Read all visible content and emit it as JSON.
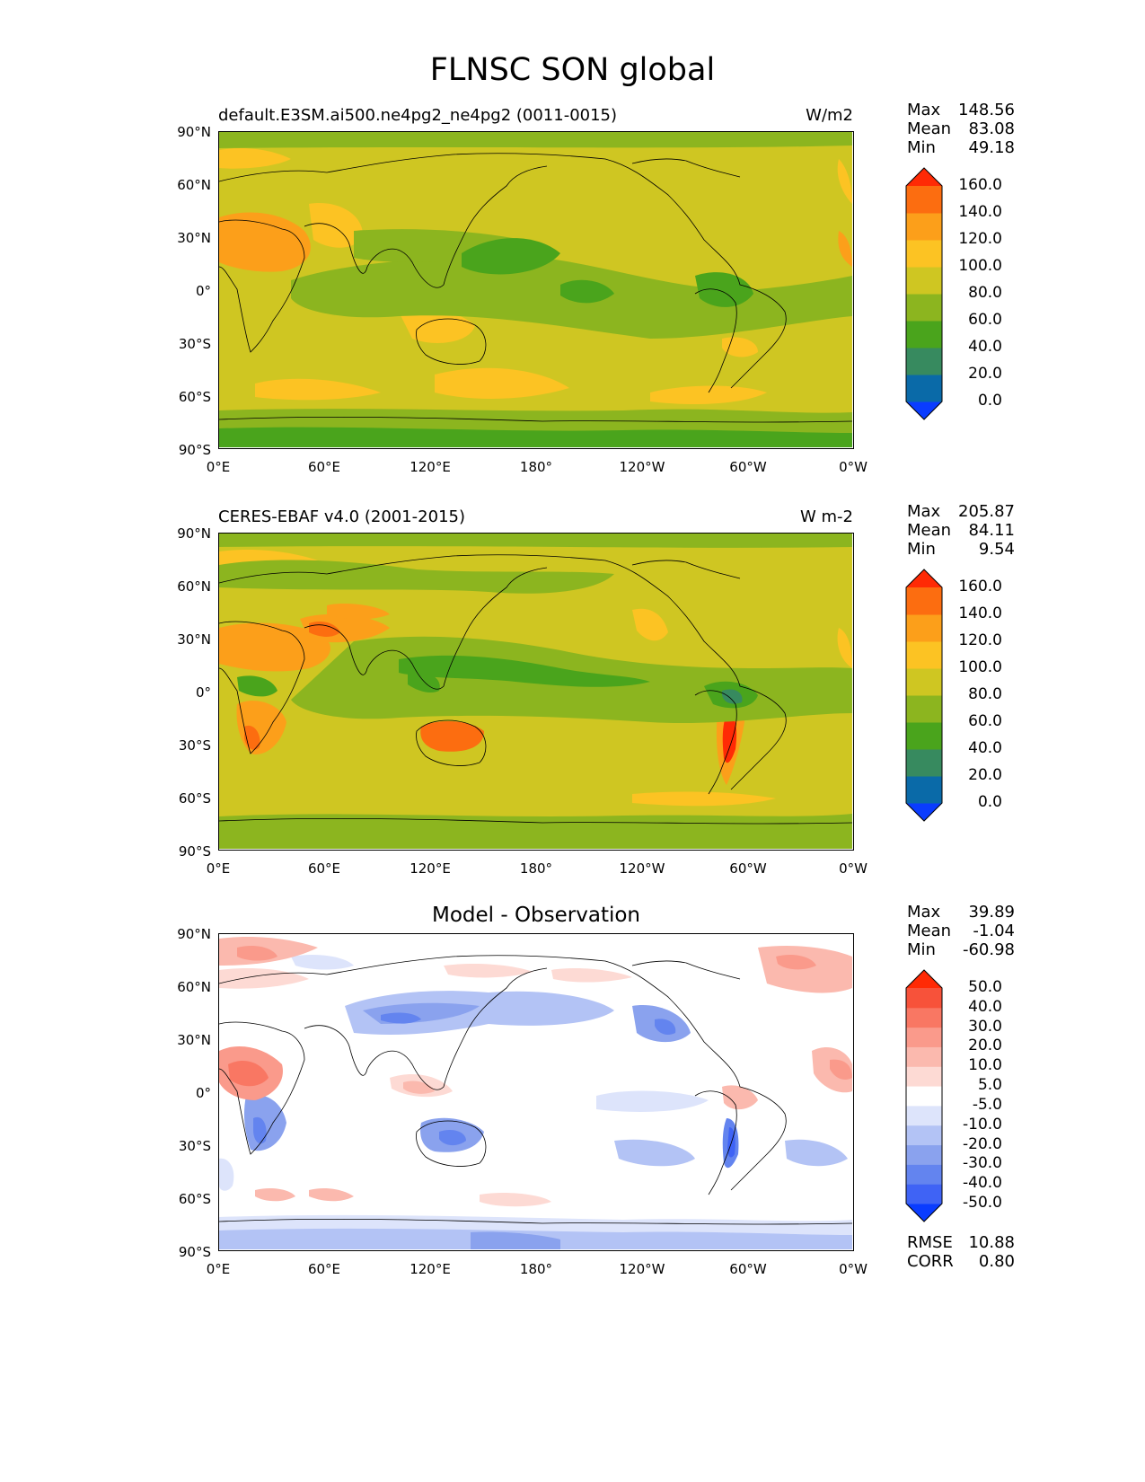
{
  "title": "FLNSC SON global",
  "panels": [
    {
      "title": "default.E3SM.ai500.ne4pg2_ne4pg2 (0011-0015)",
      "units": "W/m2",
      "stats": [
        {
          "key": "Max",
          "value": "148.56"
        },
        {
          "key": "Mean",
          "value": "83.08"
        },
        {
          "key": "Min",
          "value": "49.18"
        }
      ],
      "colorbar": {
        "colors": [
          "#0a3cff",
          "#0a6aa8",
          "#378a5f",
          "#4aa41c",
          "#8cb51f",
          "#cfc622",
          "#fcc323",
          "#fc9f1a",
          "#fc6d10",
          "#ff2a05"
        ],
        "labels": [
          "0.0",
          "20.0",
          "40.0",
          "60.0",
          "80.0",
          "100.0",
          "120.0",
          "140.0",
          "160.0"
        ]
      }
    },
    {
      "title": "CERES-EBAF v4.0 (2001-2015)",
      "units": "W m-2",
      "stats": [
        {
          "key": "Max",
          "value": "205.87"
        },
        {
          "key": "Mean",
          "value": "84.11"
        },
        {
          "key": "Min",
          "value": "9.54"
        }
      ],
      "colorbar": {
        "colors": [
          "#0a3cff",
          "#0a6aa8",
          "#378a5f",
          "#4aa41c",
          "#8cb51f",
          "#cfc622",
          "#fcc323",
          "#fc9f1a",
          "#fc6d10",
          "#ff2a05"
        ],
        "labels": [
          "0.0",
          "20.0",
          "40.0",
          "60.0",
          "80.0",
          "100.0",
          "120.0",
          "140.0",
          "160.0"
        ]
      }
    },
    {
      "title": "Model - Observation",
      "units": "",
      "stats": [
        {
          "key": "Max",
          "value": "39.89"
        },
        {
          "key": "Mean",
          "value": "-1.04"
        },
        {
          "key": "Min",
          "value": "-60.98"
        }
      ],
      "extra_stats": [
        {
          "key": "RMSE",
          "value": "10.88"
        },
        {
          "key": "CORR",
          "value": "0.80"
        }
      ],
      "colorbar": {
        "colors": [
          "#0a3cff",
          "#3f63f5",
          "#6384ef",
          "#8aa2ee",
          "#b3c3f5",
          "#dde4fb",
          "#ffffff",
          "#fddad4",
          "#fbb9ae",
          "#fa9a8b",
          "#f97763",
          "#f7523a",
          "#ff2a05"
        ],
        "labels": [
          "-50.0",
          "-40.0",
          "-30.0",
          "-20.0",
          "-10.0",
          "-5.0",
          "5.0",
          "10.0",
          "20.0",
          "30.0",
          "40.0",
          "50.0"
        ]
      }
    }
  ],
  "axes": {
    "y_ticks": [
      "90°N",
      "60°N",
      "30°N",
      "0°",
      "30°S",
      "60°S",
      "90°S"
    ],
    "x_ticks": [
      "0°E",
      "60°E",
      "120°E",
      "180°",
      "120°W",
      "60°W",
      "0°W"
    ]
  }
}
